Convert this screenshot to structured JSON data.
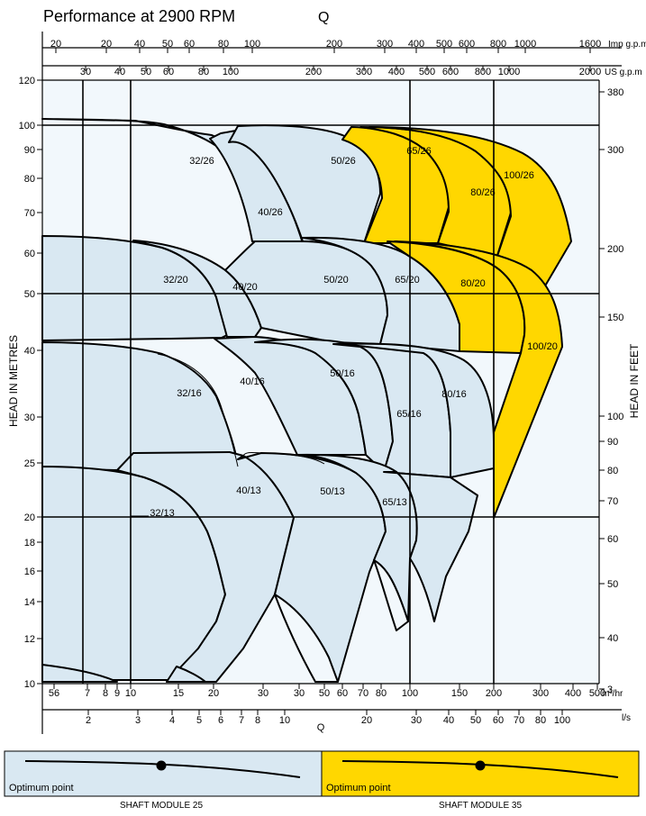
{
  "chart_data": {
    "type": "area",
    "title": "Performance at 2900 RPM",
    "title_symbol": "Q",
    "ylabel_left": "HEAD IN METRES",
    "ylabel_right": "HEAD IN FEET",
    "scale": "log-log",
    "grid": "partial",
    "ylim_m": [
      10,
      120
    ],
    "top_axes": [
      {
        "unit": "Imp g.p.m",
        "ticks": [
          "20",
          "20",
          "40",
          "50",
          "60",
          "80",
          "100",
          "200",
          "300",
          "400",
          "500",
          "600",
          "800",
          "1000",
          "1600"
        ]
      },
      {
        "unit": "US g.p.m",
        "ticks": [
          "30",
          "40",
          "50",
          "60",
          "80",
          "100",
          "200",
          "300",
          "400",
          "500",
          "600",
          "800",
          "1000",
          "2000"
        ]
      }
    ],
    "bottom_axes": [
      {
        "unit": "m³/hr",
        "ticks": [
          "56",
          "7",
          "8",
          "9",
          "10",
          "15",
          "20",
          "30",
          "30",
          "50",
          "60",
          "70",
          "80",
          "100",
          "150",
          "200",
          "300",
          "400",
          "500"
        ]
      },
      {
        "unit": "l/s",
        "ticks": [
          "2",
          "3",
          "4",
          "5",
          "6",
          "7",
          "8",
          "10",
          "20",
          "30",
          "40",
          "50",
          "60",
          "70",
          "80",
          "100"
        ]
      }
    ],
    "bottom_symbol": "Q",
    "left_ticks_m": [
      "120",
      "100",
      "90",
      "80",
      "70",
      "60",
      "50",
      "40",
      "30",
      "25",
      "20",
      "18",
      "16",
      "14",
      "12",
      "10"
    ],
    "right_ticks_ft": [
      "380",
      "300",
      "200",
      "150",
      "100",
      "90",
      "80",
      "70",
      "60",
      "50",
      "40",
      "3"
    ],
    "pump_curves": [
      {
        "name": "32/26",
        "module": "SHAFT MODULE 25",
        "head_m": [
          100,
          88
        ]
      },
      {
        "name": "40/26",
        "module": "SHAFT MODULE 25",
        "head_m": [
          96,
          64
        ]
      },
      {
        "name": "50/26",
        "module": "SHAFT MODULE 25",
        "head_m": [
          98,
          70
        ]
      },
      {
        "name": "65/26",
        "module": "SHAFT MODULE 35",
        "head_m": [
          98,
          65
        ]
      },
      {
        "name": "80/26",
        "module": "SHAFT MODULE 35",
        "head_m": [
          98,
          61
        ]
      },
      {
        "name": "100/26",
        "module": "SHAFT MODULE 35",
        "head_m": [
          97,
          62
        ]
      },
      {
        "name": "32/20",
        "module": "SHAFT MODULE 25",
        "head_m": [
          64,
          41
        ]
      },
      {
        "name": "40/20",
        "module": "SHAFT MODULE 25",
        "head_m": [
          64,
          41
        ]
      },
      {
        "name": "50/20",
        "module": "SHAFT MODULE 25",
        "head_m": [
          64,
          40
        ]
      },
      {
        "name": "65/20",
        "module": "SHAFT MODULE 35",
        "head_m": [
          62,
          40
        ]
      },
      {
        "name": "80/20",
        "module": "SHAFT MODULE 35",
        "head_m": [
          62,
          40
        ]
      },
      {
        "name": "100/20",
        "module": "SHAFT MODULE 35",
        "head_m": [
          62,
          40
        ]
      },
      {
        "name": "32/16",
        "module": "SHAFT MODULE 25",
        "head_m": [
          41,
          25
        ]
      },
      {
        "name": "40/16",
        "module": "SHAFT MODULE 25",
        "head_m": [
          41,
          25
        ]
      },
      {
        "name": "50/16",
        "module": "SHAFT MODULE 25",
        "head_m": [
          40,
          26
        ]
      },
      {
        "name": "65/16",
        "module": "SHAFT MODULE 25",
        "head_m": [
          40,
          25
        ]
      },
      {
        "name": "80/16",
        "module": "SHAFT MODULE 25",
        "head_m": [
          40,
          24
        ]
      },
      {
        "name": "32/13",
        "module": "SHAFT MODULE 25",
        "head_m": [
          25,
          16
        ]
      },
      {
        "name": "40/13",
        "module": "SHAFT MODULE 25",
        "head_m": [
          26,
          17
        ]
      },
      {
        "name": "50/13",
        "module": "SHAFT MODULE 25",
        "head_m": [
          26,
          13
        ]
      },
      {
        "name": "65/13",
        "module": "SHAFT MODULE 25",
        "head_m": [
          25,
          13
        ]
      }
    ],
    "legend": [
      {
        "label": "Optimum point",
        "module": "SHAFT MODULE 25",
        "color": "#d9e8f2"
      },
      {
        "label": "Optimum point",
        "module": "SHAFT MODULE 35",
        "color": "#ffd700"
      }
    ]
  },
  "colors": {
    "module25": "#d9e8f2",
    "module35": "#ffd700",
    "plot_bg": "#f2f8fc",
    "line": "#000000"
  }
}
